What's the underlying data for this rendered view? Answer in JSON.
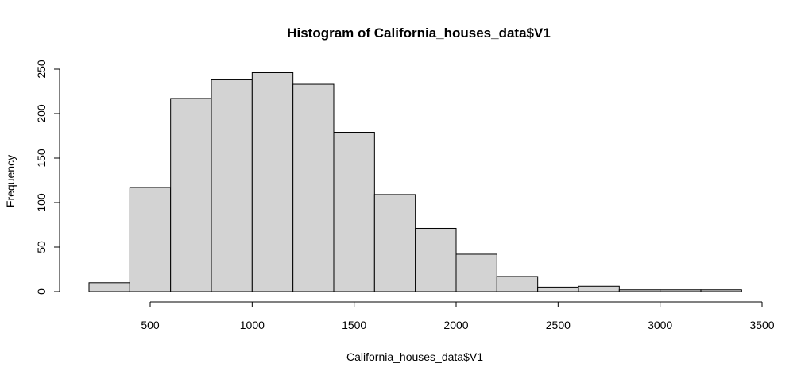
{
  "chart_data": {
    "type": "histogram",
    "title": "Histogram of California_houses_data$V1",
    "xlabel": "California_houses_data$V1",
    "ylabel": "Frequency",
    "bins": [
      {
        "from": 200,
        "to": 400,
        "count": 10
      },
      {
        "from": 400,
        "to": 600,
        "count": 117
      },
      {
        "from": 600,
        "to": 800,
        "count": 217
      },
      {
        "from": 800,
        "to": 1000,
        "count": 238
      },
      {
        "from": 1000,
        "to": 1200,
        "count": 246
      },
      {
        "from": 1200,
        "to": 1400,
        "count": 233
      },
      {
        "from": 1400,
        "to": 1600,
        "count": 179
      },
      {
        "from": 1600,
        "to": 1800,
        "count": 109
      },
      {
        "from": 1800,
        "to": 2000,
        "count": 71
      },
      {
        "from": 2000,
        "to": 2200,
        "count": 42
      },
      {
        "from": 2200,
        "to": 2400,
        "count": 17
      },
      {
        "from": 2400,
        "to": 2600,
        "count": 5
      },
      {
        "from": 2600,
        "to": 2800,
        "count": 6
      },
      {
        "from": 2800,
        "to": 3000,
        "count": 2
      },
      {
        "from": 3000,
        "to": 3200,
        "count": 2
      },
      {
        "from": 3200,
        "to": 3400,
        "count": 2
      }
    ],
    "x_ticks": [
      500,
      1000,
      1500,
      2000,
      2500,
      3000,
      3500
    ],
    "x_tick_labels": [
      "500",
      "1000",
      "1500",
      "2000",
      "2500",
      "3000",
      "3500"
    ],
    "y_ticks": [
      0,
      50,
      100,
      150,
      200,
      250
    ],
    "y_tick_labels": [
      "0",
      "50",
      "100",
      "150",
      "200",
      "250"
    ],
    "colors": {
      "bar_fill": "#d3d3d3",
      "bar_stroke": "#000000"
    }
  }
}
